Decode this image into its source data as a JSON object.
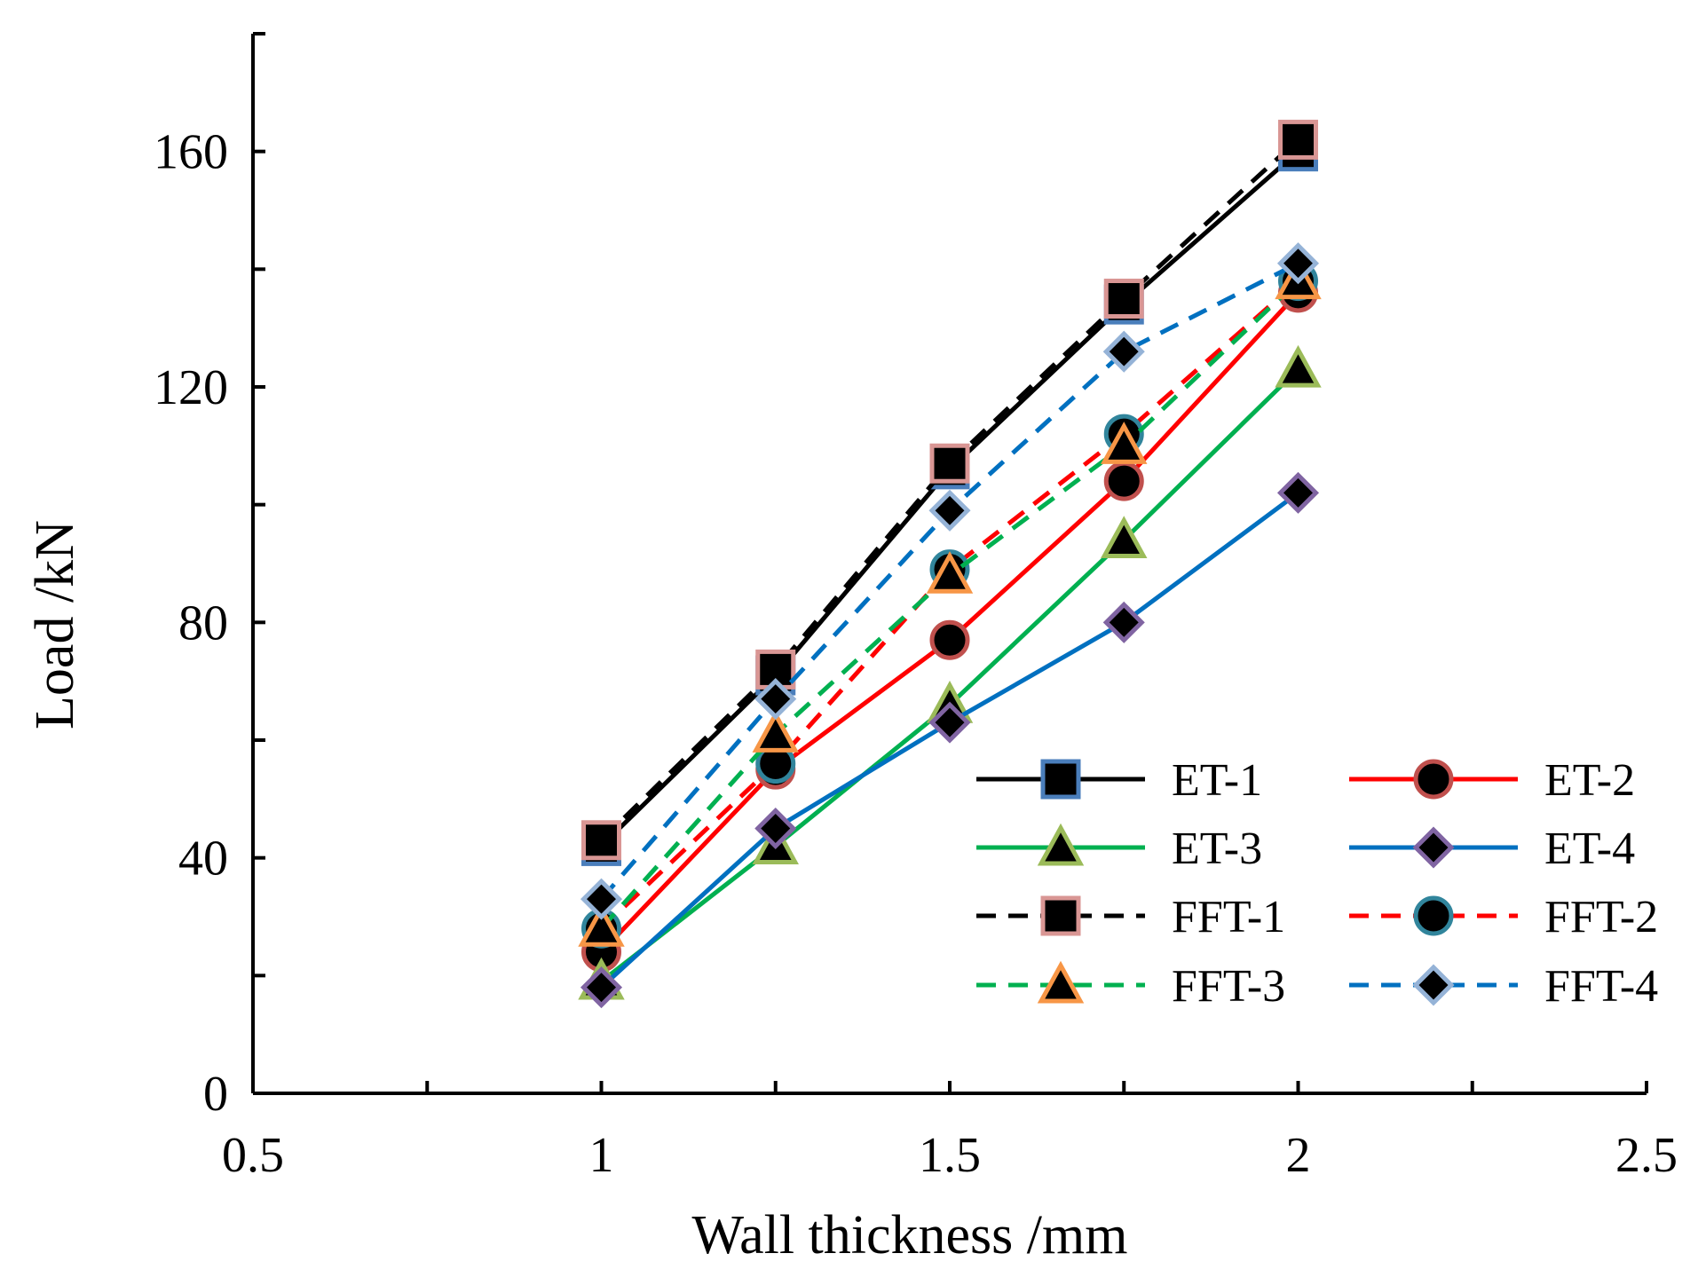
{
  "chart_data": {
    "type": "line",
    "title": "",
    "xlabel": "Wall thickness /mm",
    "ylabel": "Load /kN",
    "xlim": [
      0.5,
      2.5
    ],
    "ylim": [
      0,
      180
    ],
    "x_ticks": [
      0.5,
      1,
      1.5,
      2,
      2.5
    ],
    "x_tick_labels": [
      "0.5",
      "1",
      "1.5",
      "2",
      "2.5"
    ],
    "x_minor_ticks": [
      0.75,
      1.25,
      1.75,
      2.25
    ],
    "y_ticks": [
      0,
      40,
      80,
      120,
      160
    ],
    "y_tick_labels": [
      "0",
      "40",
      "80",
      "120",
      "160"
    ],
    "y_minor_ticks": [
      20,
      60,
      100,
      140,
      180
    ],
    "grid": false,
    "legend_position": "bottom-right",
    "x": [
      1,
      1.25,
      1.5,
      1.75,
      2
    ],
    "series": [
      {
        "name": "ET-1",
        "values": [
          42,
          71,
          106,
          134,
          160
        ],
        "color": "#000000",
        "dash": "solid",
        "marker": "square",
        "marker_fill": "#000000",
        "marker_edge": "#4a7ebb"
      },
      {
        "name": "ET-2",
        "values": [
          24,
          55,
          77,
          104,
          136
        ],
        "color": "#ff0000",
        "dash": "solid",
        "marker": "circle",
        "marker_fill": "#000000",
        "marker_edge": "#c0504d"
      },
      {
        "name": "ET-3",
        "values": [
          19,
          42,
          66,
          94,
          123
        ],
        "color": "#00b050",
        "dash": "solid",
        "marker": "triangle",
        "marker_fill": "#000000",
        "marker_edge": "#9bbb59"
      },
      {
        "name": "ET-4",
        "values": [
          18,
          45,
          63,
          80,
          102
        ],
        "color": "#0070c0",
        "dash": "solid",
        "marker": "diamond",
        "marker_fill": "#000000",
        "marker_edge": "#8064a2"
      },
      {
        "name": "FFT-1",
        "values": [
          43,
          72,
          107,
          135,
          162
        ],
        "color": "#000000",
        "dash": "dashed",
        "marker": "square",
        "marker_fill": "#000000",
        "marker_edge": "#d99694"
      },
      {
        "name": "FFT-2",
        "values": [
          28,
          56,
          89,
          112,
          138
        ],
        "color": "#ff0000",
        "dash": "dashed",
        "marker": "circle",
        "marker_fill": "#000000",
        "marker_edge": "#31859c"
      },
      {
        "name": "FFT-3",
        "values": [
          28,
          61,
          88,
          110,
          138
        ],
        "color": "#00b050",
        "dash": "dashed",
        "marker": "triangle",
        "marker_fill": "#000000",
        "marker_edge": "#f79646"
      },
      {
        "name": "FFT-4",
        "values": [
          33,
          67,
          99,
          126,
          141
        ],
        "color": "#0070c0",
        "dash": "dashed",
        "marker": "diamond",
        "marker_fill": "#000000",
        "marker_edge": "#95b3d7"
      }
    ]
  }
}
